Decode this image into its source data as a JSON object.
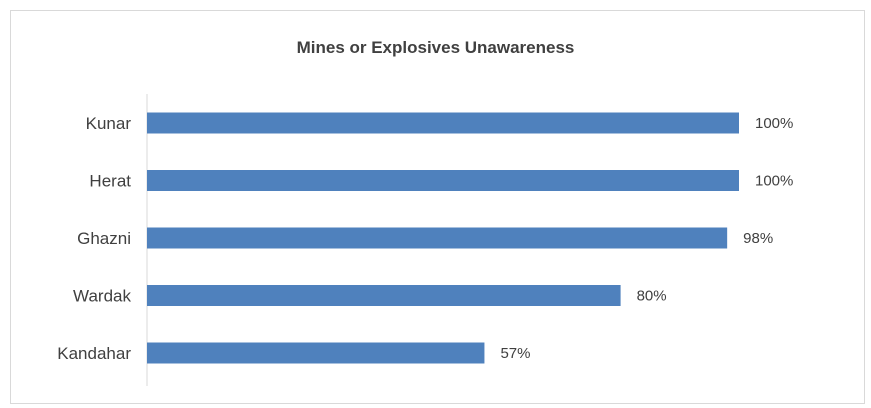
{
  "chart_data": {
    "type": "bar",
    "orientation": "horizontal",
    "title": "Mines or Explosives Unawareness",
    "categories": [
      "Kunar",
      "Herat",
      "Ghazni",
      "Wardak",
      "Kandahar"
    ],
    "values": [
      100,
      100,
      98,
      80,
      57
    ],
    "value_labels": [
      "100%",
      "100%",
      "98%",
      "80%",
      "57%"
    ],
    "xlim": [
      0,
      100
    ],
    "grid": false,
    "legend": "none",
    "bar_color": "#4f81bd",
    "axis_color": "#d9d9d9"
  }
}
